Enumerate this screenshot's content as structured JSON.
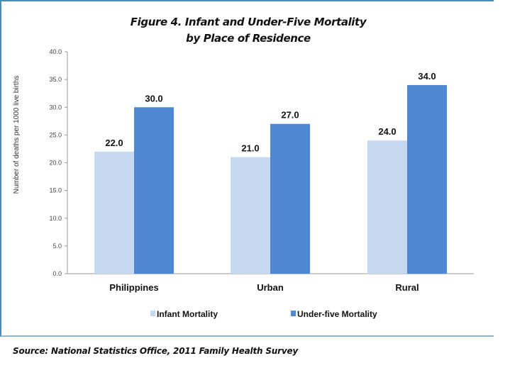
{
  "chart_data": {
    "type": "bar",
    "title": "Figure 4. Infant and Under-Five Mortality",
    "subtitle": "by Place of Residence",
    "xlabel": "",
    "ylabel": "Number of deaths per 1000 live births",
    "ylim": [
      0,
      40
    ],
    "yticks": [
      "0.0",
      "5.0",
      "10.0",
      "15.0",
      "20.0",
      "25.0",
      "30.0",
      "35.0",
      "40.0"
    ],
    "categories": [
      "Philippines",
      "Urban",
      "Rural"
    ],
    "series": [
      {
        "name": "Infant Mortality",
        "values": [
          22.0,
          21.0,
          24.0
        ],
        "color": "#c6d9f1"
      },
      {
        "name": "Under-five Mortality",
        "values": [
          30.0,
          27.0,
          34.0
        ],
        "color": "#4f88d2"
      }
    ],
    "legend": "bottom",
    "grid": false
  },
  "source": "Source: National Statistics Office, 2011 Family Health Survey"
}
